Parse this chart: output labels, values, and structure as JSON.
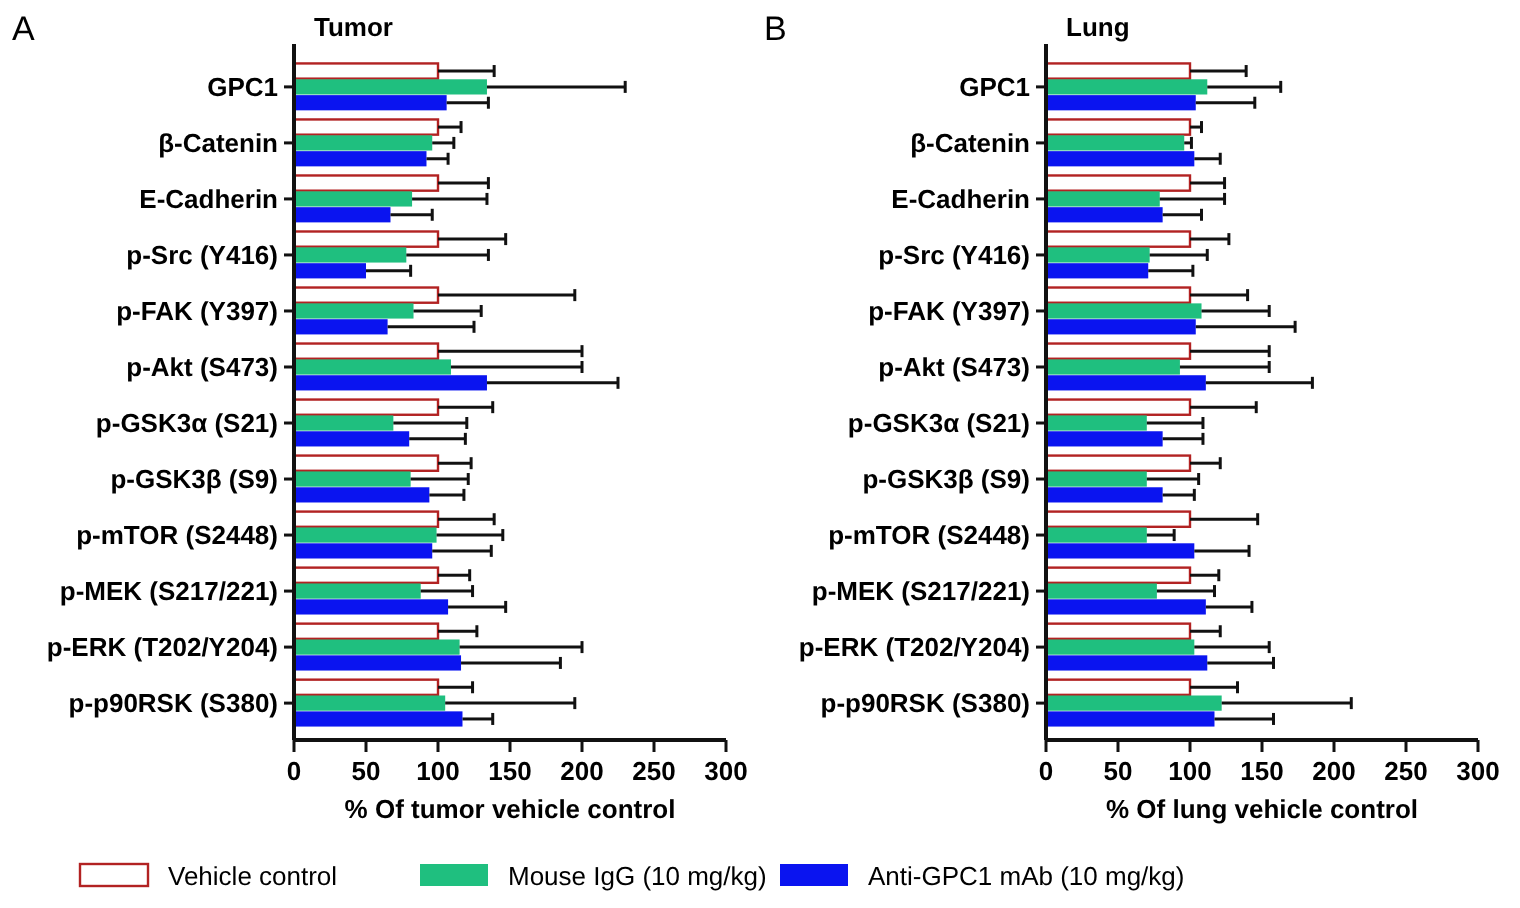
{
  "chart_data": [
    {
      "type": "bar",
      "orientation": "horizontal",
      "title": "Tumor",
      "annotations": [
        "A"
      ],
      "xlabel": "% Of tumor vehicle control",
      "legend": "bottom",
      "xlim": [
        0,
        300
      ],
      "xticks": [
        0,
        50,
        100,
        150,
        200,
        250,
        300
      ],
      "categories": [
        "GPC1",
        "β-Catenin",
        "E-Cadherin",
        "p-Src (Y416)",
        "p-FAK (Y397)",
        "p-Akt (S473)",
        "p-GSK3α (S21)",
        "p-GSK3β (S9)",
        "p-mTOR (S2448)",
        "p-MEK (S217/221)",
        "p-ERK (T202/Y204)",
        "p-p90RSK (S380)"
      ],
      "series": [
        {
          "name": "Vehicle control",
          "color": "#b22222",
          "values": [
            100,
            100,
            100,
            100,
            100,
            100,
            100,
            100,
            100,
            100,
            100,
            100
          ],
          "errors": [
            [
              100,
              139
            ],
            [
              100,
              116
            ],
            [
              100,
              135
            ],
            [
              100,
              147
            ],
            [
              100,
              195
            ],
            [
              100,
              200
            ],
            [
              100,
              138
            ],
            [
              100,
              123
            ],
            [
              100,
              139
            ],
            [
              100,
              122
            ],
            [
              100,
              127
            ],
            [
              100,
              124
            ]
          ]
        },
        {
          "name": "Mouse IgG (10 mg/kg)",
          "color": "#1fbf7f",
          "values": [
            134,
            96,
            82,
            78,
            83,
            109,
            69,
            81,
            99,
            88,
            115,
            105
          ],
          "errors": [
            [
              134,
              230
            ],
            [
              96,
              111
            ],
            [
              82,
              134
            ],
            [
              78,
              135
            ],
            [
              83,
              130
            ],
            [
              109,
              200
            ],
            [
              69,
              120
            ],
            [
              81,
              121
            ],
            [
              99,
              145
            ],
            [
              88,
              124
            ],
            [
              115,
              200
            ],
            [
              105,
              195
            ]
          ]
        },
        {
          "name": "Anti-GPC1 mAb (10 mg/kg)",
          "color": "#0a14f0",
          "values": [
            106,
            92,
            67,
            50,
            65,
            134,
            80,
            94,
            96,
            107,
            116,
            117
          ],
          "errors": [
            [
              106,
              135
            ],
            [
              92,
              107
            ],
            [
              67,
              96
            ],
            [
              50,
              81
            ],
            [
              65,
              125
            ],
            [
              134,
              225
            ],
            [
              80,
              119
            ],
            [
              94,
              118
            ],
            [
              96,
              137
            ],
            [
              107,
              147
            ],
            [
              116,
              185
            ],
            [
              117,
              138
            ]
          ]
        }
      ]
    },
    {
      "type": "bar",
      "orientation": "horizontal",
      "title": "Lung",
      "annotations": [
        "B"
      ],
      "xlabel": "% Of lung vehicle control",
      "xlim": [
        0,
        300
      ],
      "xticks": [
        0,
        50,
        100,
        150,
        200,
        250,
        300
      ],
      "categories": [
        "GPC1",
        "β-Catenin",
        "E-Cadherin",
        "p-Src (Y416)",
        "p-FAK (Y397)",
        "p-Akt (S473)",
        "p-GSK3α (S21)",
        "p-GSK3β (S9)",
        "p-mTOR (S2448)",
        "p-MEK (S217/221)",
        "p-ERK (T202/Y204)",
        "p-p90RSK (S380)"
      ],
      "series": [
        {
          "color": "#b22222",
          "values": [
            100,
            100,
            100,
            100,
            100,
            100,
            100,
            100,
            100,
            100,
            100,
            100
          ],
          "errors": [
            [
              100,
              139
            ],
            [
              100,
              108
            ],
            [
              100,
              124
            ],
            [
              100,
              127
            ],
            [
              100,
              140
            ],
            [
              100,
              155
            ],
            [
              100,
              146
            ],
            [
              100,
              121
            ],
            [
              100,
              147
            ],
            [
              100,
              120
            ],
            [
              100,
              121
            ],
            [
              100,
              133
            ]
          ]
        },
        {
          "color": "#1fbf7f",
          "values": [
            112,
            96,
            79,
            72,
            108,
            93,
            70,
            70,
            70,
            77,
            103,
            122
          ],
          "errors": [
            [
              112,
              163
            ],
            [
              96,
              101
            ],
            [
              79,
              124
            ],
            [
              72,
              112
            ],
            [
              108,
              155
            ],
            [
              93,
              155
            ],
            [
              70,
              109
            ],
            [
              70,
              106
            ],
            [
              70,
              89
            ],
            [
              77,
              117
            ],
            [
              103,
              155
            ],
            [
              122,
              212
            ]
          ]
        },
        {
          "color": "#0a14f0",
          "values": [
            104,
            103,
            81,
            71,
            104,
            111,
            81,
            81,
            103,
            111,
            112,
            117
          ],
          "errors": [
            [
              104,
              145
            ],
            [
              103,
              121
            ],
            [
              81,
              108
            ],
            [
              71,
              102
            ],
            [
              104,
              173
            ],
            [
              111,
              185
            ],
            [
              81,
              109
            ],
            [
              81,
              103
            ],
            [
              103,
              141
            ],
            [
              111,
              143
            ],
            [
              112,
              158
            ],
            [
              117,
              158
            ]
          ]
        }
      ]
    }
  ]
}
